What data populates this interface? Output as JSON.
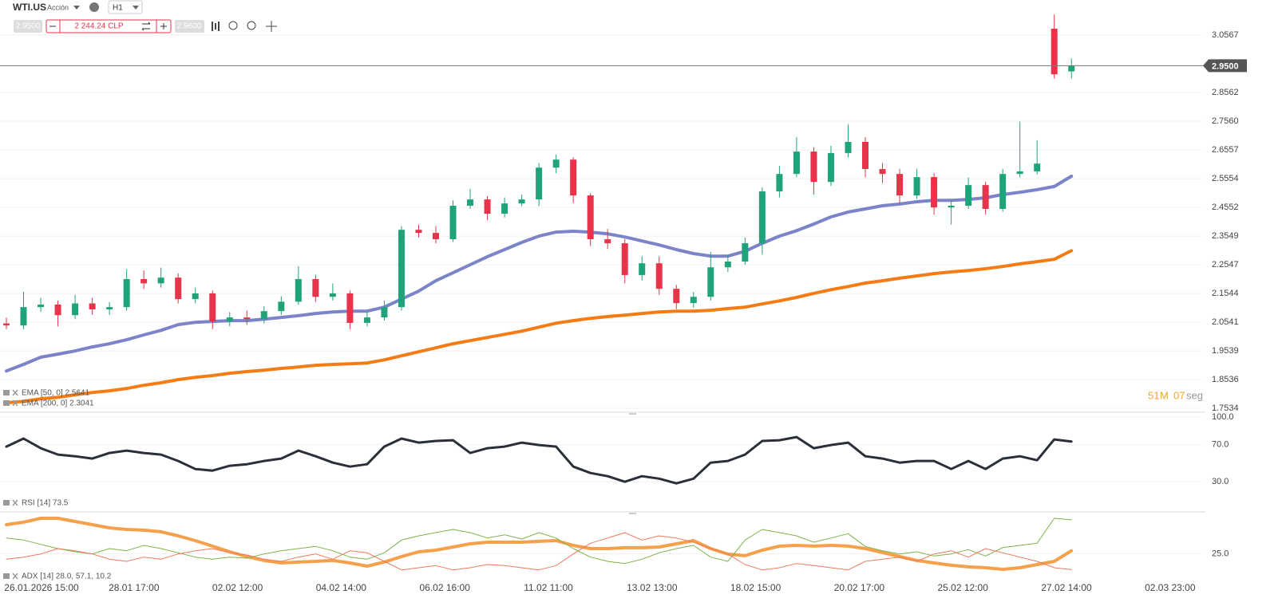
{
  "toolbar": {
    "symbol": "WTI.US",
    "asset_type": "Acción",
    "timeframe": "H1",
    "sell_price": "2.9500",
    "amount": "2 244.24 CLP",
    "buy_price": "2.9600"
  },
  "timer": {
    "minutes": "51",
    "minutes_unit": "M",
    "seconds": "07",
    "seconds_unit": "seg"
  },
  "chart_data": [
    {
      "type": "candlestick",
      "up_color": "#1fa37a",
      "down_color": "#e8334a",
      "open": [
        2.05,
        2.043,
        2.107,
        2.116,
        2.079,
        2.12,
        2.099,
        2.107,
        2.205,
        2.19,
        2.21,
        2.135,
        2.155,
        2.057,
        2.071,
        2.065,
        2.093,
        2.126,
        2.205,
        2.143,
        2.155,
        2.052,
        2.071,
        2.107,
        2.377,
        2.366,
        2.344,
        2.461,
        2.483,
        2.433,
        2.469,
        2.483,
        2.594,
        2.622,
        2.497,
        2.344,
        2.33,
        2.219,
        2.26,
        2.171,
        2.121,
        2.143,
        2.246,
        2.266,
        2.33,
        2.511,
        2.572,
        2.65,
        2.544,
        2.645,
        2.684,
        2.589,
        2.572,
        2.497,
        2.561,
        2.455,
        2.461,
        2.533,
        2.45,
        2.572,
        2.581,
        3.079,
        2.93
      ],
      "high": [
        2.07,
        2.16,
        2.14,
        2.13,
        2.15,
        2.14,
        2.125,
        2.24,
        2.235,
        2.245,
        2.225,
        2.175,
        2.165,
        2.09,
        2.095,
        2.11,
        2.145,
        2.25,
        2.22,
        2.19,
        2.165,
        2.09,
        2.13,
        2.39,
        2.395,
        2.39,
        2.48,
        2.52,
        2.495,
        2.49,
        2.5,
        2.61,
        2.64,
        2.63,
        2.505,
        2.38,
        2.345,
        2.285,
        2.285,
        2.185,
        2.16,
        2.3,
        2.29,
        2.35,
        2.525,
        2.6,
        2.7,
        2.665,
        2.67,
        2.745,
        2.7,
        2.61,
        2.59,
        2.59,
        2.575,
        2.48,
        2.56,
        2.545,
        2.59,
        2.755,
        2.69,
        3.129,
        2.975
      ],
      "low": [
        2.03,
        2.03,
        2.09,
        2.04,
        2.065,
        2.08,
        2.08,
        2.095,
        2.17,
        2.175,
        2.12,
        2.12,
        2.03,
        2.04,
        2.045,
        2.05,
        2.08,
        2.115,
        2.125,
        2.13,
        2.03,
        2.04,
        2.06,
        2.095,
        2.35,
        2.33,
        2.335,
        2.45,
        2.41,
        2.42,
        2.46,
        2.46,
        2.575,
        2.47,
        2.32,
        2.31,
        2.19,
        2.2,
        2.15,
        2.1,
        2.105,
        2.13,
        2.23,
        2.255,
        2.29,
        2.49,
        2.56,
        2.5,
        2.53,
        2.63,
        2.56,
        2.54,
        2.47,
        2.485,
        2.43,
        2.395,
        2.45,
        2.43,
        2.44,
        2.56,
        2.57,
        2.905,
        2.905
      ],
      "close": [
        2.043,
        2.107,
        2.116,
        2.079,
        2.12,
        2.099,
        2.107,
        2.205,
        2.19,
        2.21,
        2.135,
        2.155,
        2.057,
        2.071,
        2.065,
        2.093,
        2.126,
        2.205,
        2.143,
        2.155,
        2.052,
        2.071,
        2.107,
        2.377,
        2.366,
        2.344,
        2.461,
        2.483,
        2.433,
        2.469,
        2.483,
        2.594,
        2.622,
        2.497,
        2.344,
        2.33,
        2.219,
        2.26,
        2.171,
        2.121,
        2.143,
        2.246,
        2.266,
        2.33,
        2.511,
        2.572,
        2.65,
        2.544,
        2.645,
        2.684,
        2.589,
        2.572,
        2.497,
        2.561,
        2.455,
        2.461,
        2.533,
        2.45,
        2.572,
        2.581,
        2.608,
        2.92,
        2.95
      ],
      "series": [
        {
          "name": "EMA [50, 0] 2.5641",
          "color": "#7b83c9",
          "values": [
            1.884,
            1.907,
            1.932,
            1.943,
            1.954,
            1.968,
            1.979,
            1.993,
            2.01,
            2.026,
            2.046,
            2.054,
            2.057,
            2.06,
            2.06,
            2.065,
            2.071,
            2.077,
            2.085,
            2.09,
            2.093,
            2.093,
            2.107,
            2.135,
            2.163,
            2.199,
            2.227,
            2.255,
            2.283,
            2.308,
            2.333,
            2.355,
            2.369,
            2.372,
            2.369,
            2.363,
            2.352,
            2.338,
            2.324,
            2.308,
            2.294,
            2.285,
            2.285,
            2.302,
            2.33,
            2.355,
            2.374,
            2.397,
            2.422,
            2.439,
            2.45,
            2.461,
            2.467,
            2.475,
            2.48,
            2.48,
            2.483,
            2.489,
            2.5,
            2.508,
            2.517,
            2.528,
            2.5641
          ]
        },
        {
          "name": "EMA [200, 0] 2.3041",
          "color": "#f57c14",
          "values": [
            1.773,
            1.778,
            1.787,
            1.792,
            1.801,
            1.809,
            1.815,
            1.823,
            1.834,
            1.843,
            1.854,
            1.862,
            1.868,
            1.876,
            1.882,
            1.887,
            1.893,
            1.898,
            1.904,
            1.907,
            1.909,
            1.912,
            1.923,
            1.937,
            1.951,
            1.965,
            1.979,
            1.99,
            2.001,
            2.012,
            2.023,
            2.037,
            2.051,
            2.06,
            2.068,
            2.074,
            2.079,
            2.085,
            2.09,
            2.093,
            2.093,
            2.096,
            2.102,
            2.107,
            2.118,
            2.129,
            2.141,
            2.155,
            2.168,
            2.179,
            2.191,
            2.199,
            2.208,
            2.216,
            2.224,
            2.23,
            2.235,
            2.241,
            2.249,
            2.258,
            2.266,
            2.274,
            2.3041
          ]
        }
      ],
      "price_line": {
        "value": 2.95,
        "label": "2.9500"
      },
      "ylim": [
        1.74,
        3.157
      ],
      "yticks": [
        3.0567,
        2.8562,
        {
          "value": 2.756,
          "label": "2.7560"
        },
        2.6557,
        2.5554,
        2.4552,
        2.3549,
        2.2547,
        2.1544,
        2.0541,
        1.9539,
        1.8536,
        1.7534
      ],
      "grid": true
    },
    {
      "type": "line",
      "series": [
        {
          "name": "RSI [14] 73.5",
          "color": "#2a2f3a",
          "values": [
            68.0,
            76.7,
            66.3,
            59.4,
            57.6,
            55.1,
            61.1,
            63.7,
            61.1,
            59.4,
            52.5,
            43.8,
            42.1,
            47.3,
            49.0,
            52.5,
            55.1,
            63.7,
            57.6,
            50.7,
            46.4,
            49.0,
            68.0,
            76.7,
            72.3,
            74.1,
            74.9,
            61.1,
            66.3,
            68.0,
            72.3,
            69.7,
            68.0,
            46.4,
            39.5,
            36.0,
            30.0,
            36.0,
            33.4,
            28.3,
            33.4,
            50.7,
            52.5,
            59.4,
            74.1,
            74.9,
            78.4,
            66.3,
            69.7,
            72.3,
            57.6,
            55.1,
            50.7,
            52.5,
            52.5,
            43.8,
            52.5,
            43.8,
            55.1,
            57.6,
            53.3,
            75.8,
            73.5
          ]
        }
      ],
      "ylim": [
        0,
        100
      ],
      "yticks": [
        {
          "value": 100,
          "label": "100.0"
        },
        {
          "value": 70,
          "label": "70.0"
        },
        {
          "value": 30,
          "label": "30.0"
        }
      ]
    },
    {
      "type": "line",
      "legend": "ADX [14] 28.0, 57.1, 10.2",
      "series": [
        {
          "color": "#f5a04a",
          "values": [
            52.5,
            54.8,
            58.5,
            58.5,
            55.5,
            52.5,
            49.5,
            48.0,
            47.3,
            45.8,
            42.0,
            37.5,
            32.3,
            27.0,
            22.5,
            18.8,
            16.5,
            17.3,
            18.0,
            18.8,
            16.5,
            13.5,
            17.3,
            22.5,
            27.0,
            28.5,
            31.5,
            34.5,
            36.0,
            36.0,
            36.0,
            36.8,
            37.5,
            33.0,
            30.0,
            30.0,
            30.8,
            30.8,
            31.5,
            34.5,
            37.5,
            30.0,
            24.8,
            23.3,
            28.5,
            32.3,
            33.0,
            32.3,
            33.0,
            32.3,
            30.0,
            26.3,
            22.5,
            18.8,
            16.5,
            14.3,
            12.8,
            12.0,
            10.5,
            12.0,
            15.0,
            18.0,
            28.0
          ]
        },
        {
          "color": "#7cb34a",
          "values": [
            40,
            38,
            34,
            30,
            27,
            25,
            30,
            28,
            33,
            30,
            26,
            22,
            20,
            22,
            21,
            25,
            28,
            30,
            32,
            28,
            22,
            20,
            26,
            38,
            42,
            45,
            48,
            45,
            40,
            43,
            39,
            45,
            40,
            30,
            22,
            18,
            16,
            20,
            26,
            30,
            33,
            22,
            18,
            38,
            48,
            45,
            42,
            36,
            40,
            44,
            32,
            28,
            25,
            27,
            23,
            25,
            29,
            23,
            31,
            33,
            35,
            58.5,
            57.1
          ]
        },
        {
          "color": "#f07a5c",
          "values": [
            20,
            22,
            25,
            30,
            28,
            25,
            20,
            18,
            22,
            20,
            25,
            28,
            30,
            26,
            24,
            20,
            18,
            22,
            25,
            20,
            28,
            26,
            18,
            10,
            12,
            14,
            10,
            12,
            15,
            14,
            12,
            10,
            14,
            25,
            35,
            40,
            45,
            38,
            42,
            40,
            36,
            30,
            25,
            15,
            10,
            12,
            16,
            14,
            12,
            10,
            18,
            20,
            22,
            18,
            25,
            28,
            22,
            30,
            26,
            22,
            18,
            12,
            10.2
          ]
        }
      ],
      "ylim": [
        0,
        60
      ],
      "yticks": [
        {
          "value": 25,
          "label": "25.0"
        }
      ],
      "xtick_labels": [
        "26.01.2026 15:00",
        "28.01 17:00",
        "02.02 12:00",
        "04.02 14:00",
        "06.02 16:00",
        "11.02 11:00",
        "13.02 13:00",
        "18.02 15:00",
        "20.02 17:00",
        "25.02 12:00",
        "27.02 14:00",
        "02.03 23:00"
      ]
    }
  ]
}
